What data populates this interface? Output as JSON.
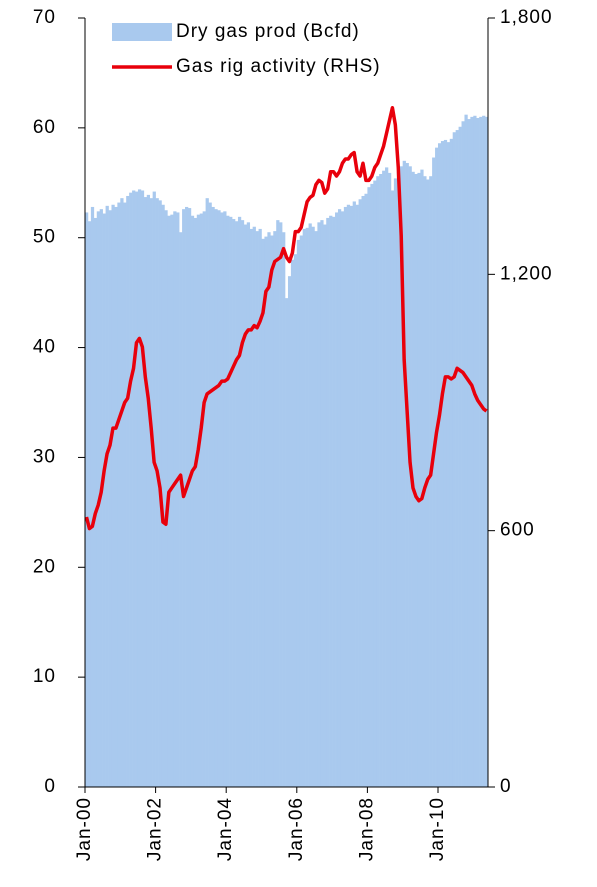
{
  "chart_data": {
    "type": "combo",
    "categories": [
      "Jan-00",
      null,
      null,
      null,
      null,
      null,
      null,
      null,
      null,
      null,
      null,
      null,
      null,
      null,
      null,
      null,
      null,
      null,
      null,
      null,
      null,
      null,
      null,
      null,
      "Jan-02",
      null,
      null,
      null,
      null,
      null,
      null,
      null,
      null,
      null,
      null,
      null,
      null,
      null,
      null,
      null,
      null,
      null,
      null,
      null,
      null,
      null,
      null,
      null,
      "Jan-04",
      null,
      null,
      null,
      null,
      null,
      null,
      null,
      null,
      null,
      null,
      null,
      null,
      null,
      null,
      null,
      null,
      null,
      null,
      null,
      null,
      null,
      null,
      null,
      "Jan-06",
      null,
      null,
      null,
      null,
      null,
      null,
      null,
      null,
      null,
      null,
      null,
      null,
      null,
      null,
      null,
      null,
      null,
      null,
      null,
      null,
      null,
      null,
      null,
      "Jan-08",
      null,
      null,
      null,
      null,
      null,
      null,
      null,
      null,
      null,
      null,
      null,
      null,
      null,
      null,
      null,
      null,
      null,
      null,
      null,
      null,
      null,
      null,
      null,
      "Jan-10",
      null,
      null,
      null,
      null,
      null,
      null,
      null,
      null,
      null,
      null,
      null,
      null,
      null,
      null,
      null,
      null
    ],
    "series": [
      {
        "name": "Dry gas prod (Bcfd)",
        "type": "bar",
        "color": "#a9c9ee",
        "values": [
          52.3,
          51.5,
          52.8,
          51.8,
          52.4,
          52.6,
          52.2,
          52.9,
          52.5,
          53.0,
          52.8,
          53.2,
          53.6,
          53.2,
          53.8,
          54.1,
          54.3,
          54.2,
          54.4,
          54.3,
          53.7,
          53.9,
          53.6,
          54.2,
          53.6,
          53.4,
          53.0,
          52.5,
          52.0,
          52.1,
          52.4,
          52.3,
          50.5,
          52.6,
          52.8,
          52.7,
          52.0,
          51.8,
          52.1,
          52.2,
          52.4,
          53.6,
          53.2,
          52.8,
          52.6,
          52.5,
          52.3,
          52.4,
          52.0,
          51.9,
          51.7,
          51.5,
          51.9,
          51.6,
          51.2,
          51.4,
          50.8,
          51.0,
          50.6,
          50.8,
          49.9,
          50.1,
          50.5,
          50.2,
          50.6,
          51.6,
          51.4,
          50.5,
          44.5,
          46.5,
          48.0,
          48.5,
          49.8,
          50.2,
          50.8,
          50.9,
          51.3,
          51.0,
          50.6,
          51.4,
          51.6,
          51.2,
          51.8,
          52.0,
          51.9,
          52.3,
          52.6,
          52.4,
          52.8,
          53.0,
          52.9,
          53.3,
          53.0,
          53.5,
          53.8,
          54.0,
          54.6,
          54.9,
          55.2,
          55.6,
          55.8,
          56.1,
          56.4,
          55.9,
          54.3,
          55.4,
          56.0,
          56.5,
          57.0,
          56.8,
          56.5,
          56.0,
          55.8,
          55.9,
          56.2,
          55.6,
          55.3,
          55.6,
          57.3,
          58.2,
          58.6,
          58.8,
          58.9,
          58.7,
          59.0,
          59.6,
          59.8,
          60.1,
          60.6,
          61.2,
          60.8,
          61.0,
          61.1,
          60.9,
          61.0,
          61.1,
          61.0
        ]
      },
      {
        "name": "Gas rig activity (RHS)",
        "type": "line",
        "axis": "y2",
        "color": "#e8000b",
        "values": [
          632,
          605,
          610,
          640,
          660,
          690,
          740,
          780,
          800,
          840,
          840,
          860,
          880,
          900,
          910,
          950,
          980,
          1040,
          1050,
          1030,
          960,
          910,
          840,
          760,
          740,
          700,
          620,
          615,
          690,
          700,
          710,
          720,
          730,
          680,
          700,
          720,
          740,
          750,
          790,
          840,
          900,
          920,
          925,
          930,
          935,
          940,
          950,
          950,
          955,
          970,
          985,
          1000,
          1010,
          1040,
          1060,
          1070,
          1070,
          1080,
          1075,
          1090,
          1110,
          1160,
          1170,
          1210,
          1230,
          1235,
          1240,
          1260,
          1240,
          1230,
          1250,
          1300,
          1300,
          1310,
          1340,
          1370,
          1380,
          1385,
          1410,
          1420,
          1415,
          1390,
          1400,
          1440,
          1440,
          1430,
          1440,
          1460,
          1470,
          1470,
          1480,
          1485,
          1440,
          1430,
          1460,
          1420,
          1420,
          1430,
          1450,
          1460,
          1480,
          1500,
          1530,
          1560,
          1590,
          1550,
          1450,
          1290,
          1000,
          880,
          760,
          700,
          680,
          670,
          675,
          700,
          720,
          730,
          780,
          830,
          870,
          920,
          960,
          960,
          955,
          960,
          980,
          975,
          970,
          960,
          950,
          940,
          920,
          905,
          895,
          885,
          880
        ]
      }
    ],
    "ylim": [
      0,
      70
    ],
    "yticks": [
      0,
      10,
      20,
      30,
      40,
      50,
      60,
      70
    ],
    "y2lim": [
      0,
      1800
    ],
    "y2ticks": [
      0,
      600,
      {
        "value": 1200,
        "label": "1,200"
      },
      {
        "value": 1800,
        "label": "1,800"
      }
    ],
    "legend": "top-left"
  }
}
